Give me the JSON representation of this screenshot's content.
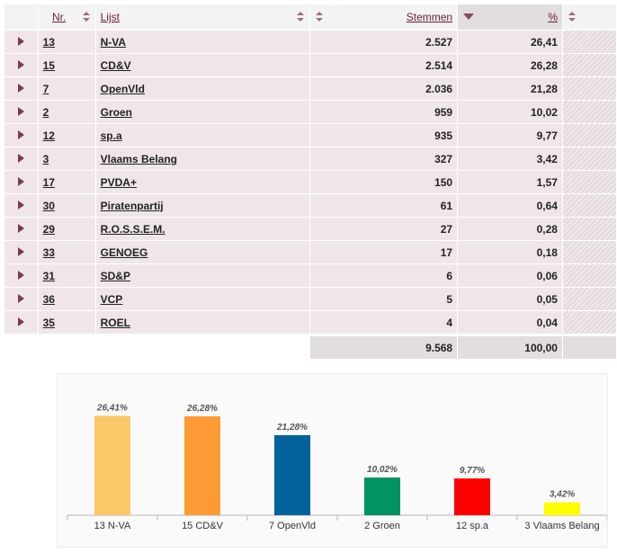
{
  "table": {
    "headers": {
      "nr": "Nr.",
      "lijst": "Lijst",
      "stemmen": "Stemmen",
      "pct": "%"
    },
    "rows": [
      {
        "nr": "13",
        "lijst": "N-VA",
        "stemmen": "2.527",
        "pct": "26,41"
      },
      {
        "nr": "15",
        "lijst": "CD&V",
        "stemmen": "2.514",
        "pct": "26,28"
      },
      {
        "nr": "7",
        "lijst": "OpenVld",
        "stemmen": "2.036",
        "pct": "21,28"
      },
      {
        "nr": "2",
        "lijst": "Groen",
        "stemmen": "959",
        "pct": "10,02"
      },
      {
        "nr": "12",
        "lijst": "sp.a",
        "stemmen": "935",
        "pct": "9,77"
      },
      {
        "nr": "3",
        "lijst": "Vlaams Belang",
        "stemmen": "327",
        "pct": "3,42"
      },
      {
        "nr": "17",
        "lijst": "PVDA+",
        "stemmen": "150",
        "pct": "1,57"
      },
      {
        "nr": "30",
        "lijst": "Piratenpartij",
        "stemmen": "61",
        "pct": "0,64"
      },
      {
        "nr": "29",
        "lijst": "R.O.S.S.E.M.",
        "stemmen": "27",
        "pct": "0,28"
      },
      {
        "nr": "33",
        "lijst": "GENOEG",
        "stemmen": "17",
        "pct": "0,18"
      },
      {
        "nr": "31",
        "lijst": "SD&P",
        "stemmen": "6",
        "pct": "0,06"
      },
      {
        "nr": "36",
        "lijst": "VCP",
        "stemmen": "5",
        "pct": "0,05"
      },
      {
        "nr": "35",
        "lijst": "ROEL",
        "stemmen": "4",
        "pct": "0,04"
      }
    ],
    "total": {
      "stemmen": "9.568",
      "pct": "100,00"
    }
  },
  "chart_data": {
    "type": "bar",
    "categories": [
      "13 N-VA",
      "15 CD&V",
      "7 OpenVld",
      "2 Groen",
      "12 sp.a",
      "3 Vlaams Belang"
    ],
    "values": [
      26.41,
      26.28,
      21.28,
      10.02,
      9.77,
      3.42
    ],
    "labels": [
      "26,41%",
      "26,28%",
      "21,28%",
      "10,02%",
      "9,77%",
      "3,42%"
    ],
    "colors": [
      "#fbc868",
      "#fd9a36",
      "#02639c",
      "#029263",
      "#fd0000",
      "#fdfd00"
    ],
    "ylim": [
      0,
      30
    ],
    "grid": false,
    "title": "",
    "xlabel": "",
    "ylabel": ""
  }
}
